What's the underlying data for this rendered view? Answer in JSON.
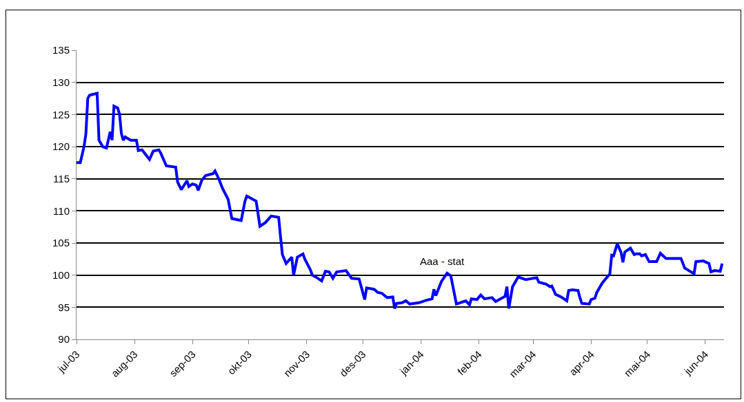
{
  "chart_data": {
    "type": "line",
    "x": [
      "2003-07-01",
      "2003-07-03",
      "2003-07-05",
      "2003-07-06",
      "2003-07-07",
      "2003-07-08",
      "2003-07-12",
      "2003-07-13",
      "2003-07-15",
      "2003-07-17",
      "2003-07-19",
      "2003-07-20",
      "2003-07-21",
      "2003-07-23",
      "2003-07-24",
      "2003-07-25",
      "2003-07-26",
      "2003-07-27",
      "2003-07-30",
      "2003-08-02",
      "2003-08-03",
      "2003-08-05",
      "2003-08-09",
      "2003-08-11",
      "2003-08-14",
      "2003-08-15",
      "2003-08-18",
      "2003-08-23",
      "2003-08-24",
      "2003-08-26",
      "2003-08-29",
      "2003-08-30",
      "2003-09-01",
      "2003-09-03",
      "2003-09-04",
      "2003-09-06",
      "2003-09-08",
      "2003-09-12",
      "2003-09-13",
      "2003-09-15",
      "2003-09-17",
      "2003-09-20",
      "2003-09-22",
      "2003-09-27",
      "2003-09-29",
      "2003-09-30",
      "2003-10-02",
      "2003-10-05",
      "2003-10-07",
      "2003-10-10",
      "2003-10-13",
      "2003-10-17",
      "2003-10-18",
      "2003-10-19",
      "2003-10-21",
      "2003-10-24",
      "2003-10-25",
      "2003-10-27",
      "2003-10-30",
      "2003-10-31",
      "2003-11-03",
      "2003-11-04",
      "2003-11-07",
      "2003-11-09",
      "2003-11-11",
      "2003-11-13",
      "2003-11-15",
      "2003-11-17",
      "2003-11-22",
      "2003-11-25",
      "2003-11-29",
      "2003-12-02",
      "2003-12-03",
      "2003-12-07",
      "2003-12-09",
      "2003-12-11",
      "2003-12-14",
      "2003-12-17",
      "2003-12-18",
      "2003-12-19",
      "2003-12-22",
      "2003-12-24",
      "2003-12-26",
      "2003-12-31",
      "2004-01-04",
      "2004-01-07",
      "2004-01-08",
      "2004-01-09",
      "2004-01-12",
      "2004-01-15",
      "2004-01-17",
      "2004-01-20",
      "2004-01-25",
      "2004-01-27",
      "2004-01-28",
      "2004-01-31",
      "2004-02-02",
      "2004-02-04",
      "2004-02-08",
      "2004-02-10",
      "2004-02-15",
      "2004-02-16",
      "2004-02-17",
      "2004-02-19",
      "2004-02-22",
      "2004-02-26",
      "2004-03-03",
      "2004-03-04",
      "2004-03-08",
      "2004-03-10",
      "2004-03-11",
      "2004-03-13",
      "2004-03-16",
      "2004-03-19",
      "2004-03-20",
      "2004-03-22",
      "2004-03-25",
      "2004-03-26",
      "2004-03-27",
      "2004-03-31",
      "2004-04-01",
      "2004-04-03",
      "2004-04-04",
      "2004-04-07",
      "2004-04-11",
      "2004-04-12",
      "2004-04-13",
      "2004-04-15",
      "2004-04-17",
      "2004-04-18",
      "2004-04-19",
      "2004-04-22",
      "2004-04-24",
      "2004-04-25",
      "2004-04-27",
      "2004-04-28",
      "2004-04-30",
      "2004-05-02",
      "2004-05-06",
      "2004-05-08",
      "2004-05-11",
      "2004-05-19",
      "2004-05-21",
      "2004-05-26",
      "2004-05-27",
      "2004-05-31",
      "2004-06-03",
      "2004-06-04",
      "2004-06-06",
      "2004-06-09",
      "2004-06-10"
    ],
    "series": [
      {
        "name": "Aaa - stat",
        "color": "#0000ff",
        "values": [
          117.5,
          117.5,
          120,
          122,
          127.5,
          128,
          128.3,
          121,
          120,
          119.8,
          122.3,
          121,
          126.3,
          126,
          125,
          122,
          121,
          121.5,
          121,
          121,
          119.4,
          119.5,
          118,
          119.3,
          119.5,
          119,
          117,
          116.8,
          114.5,
          113.3,
          114.7,
          113.8,
          114.2,
          114,
          113.2,
          114.8,
          115.5,
          115.8,
          116.2,
          115,
          113.5,
          111.8,
          108.8,
          108.5,
          111.5,
          112.3,
          112,
          111.5,
          107.6,
          108.2,
          109.2,
          109,
          106,
          103.2,
          101.8,
          102.8,
          100,
          102.8,
          103.3,
          102.5,
          100.8,
          100,
          99.5,
          99.1,
          100.6,
          100.5,
          99.5,
          100.5,
          100.7,
          99.5,
          99.4,
          96.2,
          98,
          97.8,
          97.3,
          97.2,
          96.5,
          96.6,
          94.8,
          95.6,
          95.7,
          96,
          95.5,
          95.7,
          96.1,
          96.3,
          97.8,
          96.8,
          99,
          100.3,
          99.9,
          95.5,
          96,
          95.4,
          96.3,
          96.2,
          96.9,
          96.3,
          96.5,
          95.9,
          96.7,
          98.2,
          94.8,
          98.2,
          99.7,
          99.3,
          99.6,
          98.9,
          98.6,
          98.2,
          98.3,
          97,
          96.6,
          96,
          97.6,
          97.7,
          97.6,
          96.5,
          95.6,
          95.5,
          96.2,
          96.4,
          97.3,
          98.8,
          100.2,
          103.1,
          103,
          104.9,
          103.5,
          102,
          103.6,
          104.2,
          103.2,
          103.3,
          103.3,
          103,
          103.2,
          102.1,
          102.1,
          103.4,
          102.6,
          102.6,
          101.1,
          100.2,
          102.1,
          102.2,
          101.8,
          100.5,
          100.7,
          100.6,
          101.8
        ]
      }
    ],
    "xlim": [
      "2003-07-01",
      "2004-06-11"
    ],
    "xticks": [
      {
        "value": "2003-07-01",
        "label": "jul-03"
      },
      {
        "value": "2003-08-01",
        "label": "aug-03"
      },
      {
        "value": "2003-09-01",
        "label": "sep-03"
      },
      {
        "value": "2003-10-01",
        "label": "okt-03"
      },
      {
        "value": "2003-11-01",
        "label": "nov-03"
      },
      {
        "value": "2003-12-01",
        "label": "des-03"
      },
      {
        "value": "2004-01-01",
        "label": "jan-04"
      },
      {
        "value": "2004-02-01",
        "label": "feb-04"
      },
      {
        "value": "2004-03-01",
        "label": "mar-04"
      },
      {
        "value": "2004-04-01",
        "label": "apr-04"
      },
      {
        "value": "2004-05-01",
        "label": "mai-04"
      },
      {
        "value": "2004-06-01",
        "label": "jun-04"
      }
    ],
    "ylim": [
      90,
      135
    ],
    "yticks": [
      90,
      95,
      100,
      105,
      110,
      115,
      120,
      125,
      130,
      135
    ],
    "grid": "y",
    "legend": false,
    "marker": "none",
    "line_style": "solid"
  }
}
